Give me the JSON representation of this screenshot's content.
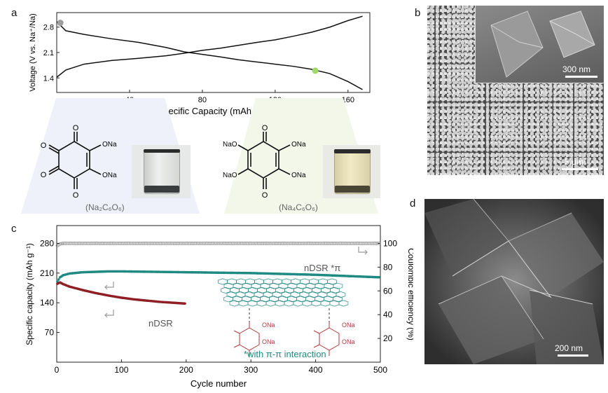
{
  "panels": {
    "a": {
      "label": "a",
      "chart_data": {
        "type": "line",
        "xlabel": "Specific Capacity (mAh g⁻¹)",
        "ylabel": "Voltage (V vs. Na⁺/Na)",
        "xlim": [
          0,
          172
        ],
        "ylim": [
          1.0,
          3.2
        ],
        "xticks": [
          "40",
          "80",
          "120",
          "160"
        ],
        "yticks": [
          "1.4",
          "2.1",
          "2.8"
        ],
        "series": [
          {
            "x": [
              0,
              5,
              15,
              30,
              45,
              60,
              70,
              80,
              90,
              100,
              110,
              120,
              130,
              140,
              150,
              160,
              168
            ],
            "y": [
              2.95,
              2.7,
              2.6,
              2.48,
              2.38,
              2.24,
              2.12,
              2.05,
              1.98,
              1.9,
              1.84,
              1.78,
              1.72,
              1.64,
              1.52,
              1.3,
              1.08
            ]
          },
          {
            "x": [
              0,
              5,
              15,
              30,
              45,
              60,
              70,
              80,
              90,
              100,
              110,
              120,
              130,
              140,
              150,
              160,
              168
            ],
            "y": [
              1.42,
              1.62,
              1.78,
              1.88,
              1.94,
              2.01,
              2.08,
              2.16,
              2.22,
              2.3,
              2.38,
              2.45,
              2.55,
              2.66,
              2.8,
              2.98,
              3.1
            ]
          }
        ],
        "markers": [
          {
            "x": 2,
            "y": 2.92,
            "color": "#9e9e9e"
          },
          {
            "x": 142,
            "y": 1.6,
            "color": "#9ed86a"
          }
        ]
      },
      "structures": [
        {
          "formula_label": "(Na₂C₆O₆)",
          "substituents": [
            "ONa",
            "ONa"
          ]
        },
        {
          "formula_label": "(Na₄C₆O₆)",
          "substituents": [
            "NaO",
            "ONa",
            "NaO",
            "ONa"
          ]
        }
      ]
    },
    "b": {
      "label": "b",
      "scalebar_main": "5 μm",
      "scalebar_inset": "300 nm"
    },
    "c": {
      "label": "c",
      "chart_data": {
        "type": "scatter",
        "xlabel": "Cycle number",
        "ylabel_left": "Specific capacity (mAh g⁻¹)",
        "ylabel_right": "Coulombic efficiency (%)",
        "xlim": [
          0,
          500
        ],
        "ylim_left": [
          0,
          322
        ],
        "ylim_right": [
          0,
          115
        ],
        "xticks": [
          "0",
          "100",
          "200",
          "300",
          "400",
          "500"
        ],
        "yticks_left": [
          "70",
          "140",
          "210",
          "280"
        ],
        "yticks_right": [
          "20",
          "40",
          "60",
          "80",
          "100"
        ],
        "series": [
          {
            "name": "nDSR *π",
            "color": "#1f8a83",
            "axis": "left",
            "x": [
              1,
              5,
              10,
              20,
              40,
              60,
              80,
              100,
              150,
              200,
              250,
              300,
              350,
              400,
              450,
              500
            ],
            "y": [
              190,
              200,
              205,
              209,
              212,
              213,
              214,
              214,
              213,
              212,
              211,
              210,
              208,
              206,
              203,
              200
            ]
          },
          {
            "name": "nDSR",
            "color": "#8e1f24",
            "axis": "left",
            "x": [
              1,
              5,
              10,
              20,
              40,
              60,
              80,
              100,
              120,
              140,
              160,
              180,
              200
            ],
            "y": [
              185,
              188,
              184,
              178,
              170,
              163,
              157,
              152,
              148,
              145,
              142,
              140,
              138
            ]
          },
          {
            "name": "Coulombic efficiency",
            "color": "#8a8a8a",
            "axis": "right",
            "x": [
              1,
              5,
              10,
              50,
              100,
              200,
              300,
              400,
              500
            ],
            "y": [
              98,
              99.5,
              100,
              100,
              100,
              100,
              100,
              100,
              100
            ]
          }
        ]
      },
      "annotations": {
        "npi_label": "nDSR *π",
        "ndsr_label": "nDSR",
        "interaction_note": "*with π-π interaction",
        "struct_left": [
          "ONa",
          "ONa"
        ],
        "struct_right": [
          "ONa",
          "ONa"
        ]
      }
    },
    "d": {
      "label": "d",
      "scalebar": "200 nm"
    }
  }
}
